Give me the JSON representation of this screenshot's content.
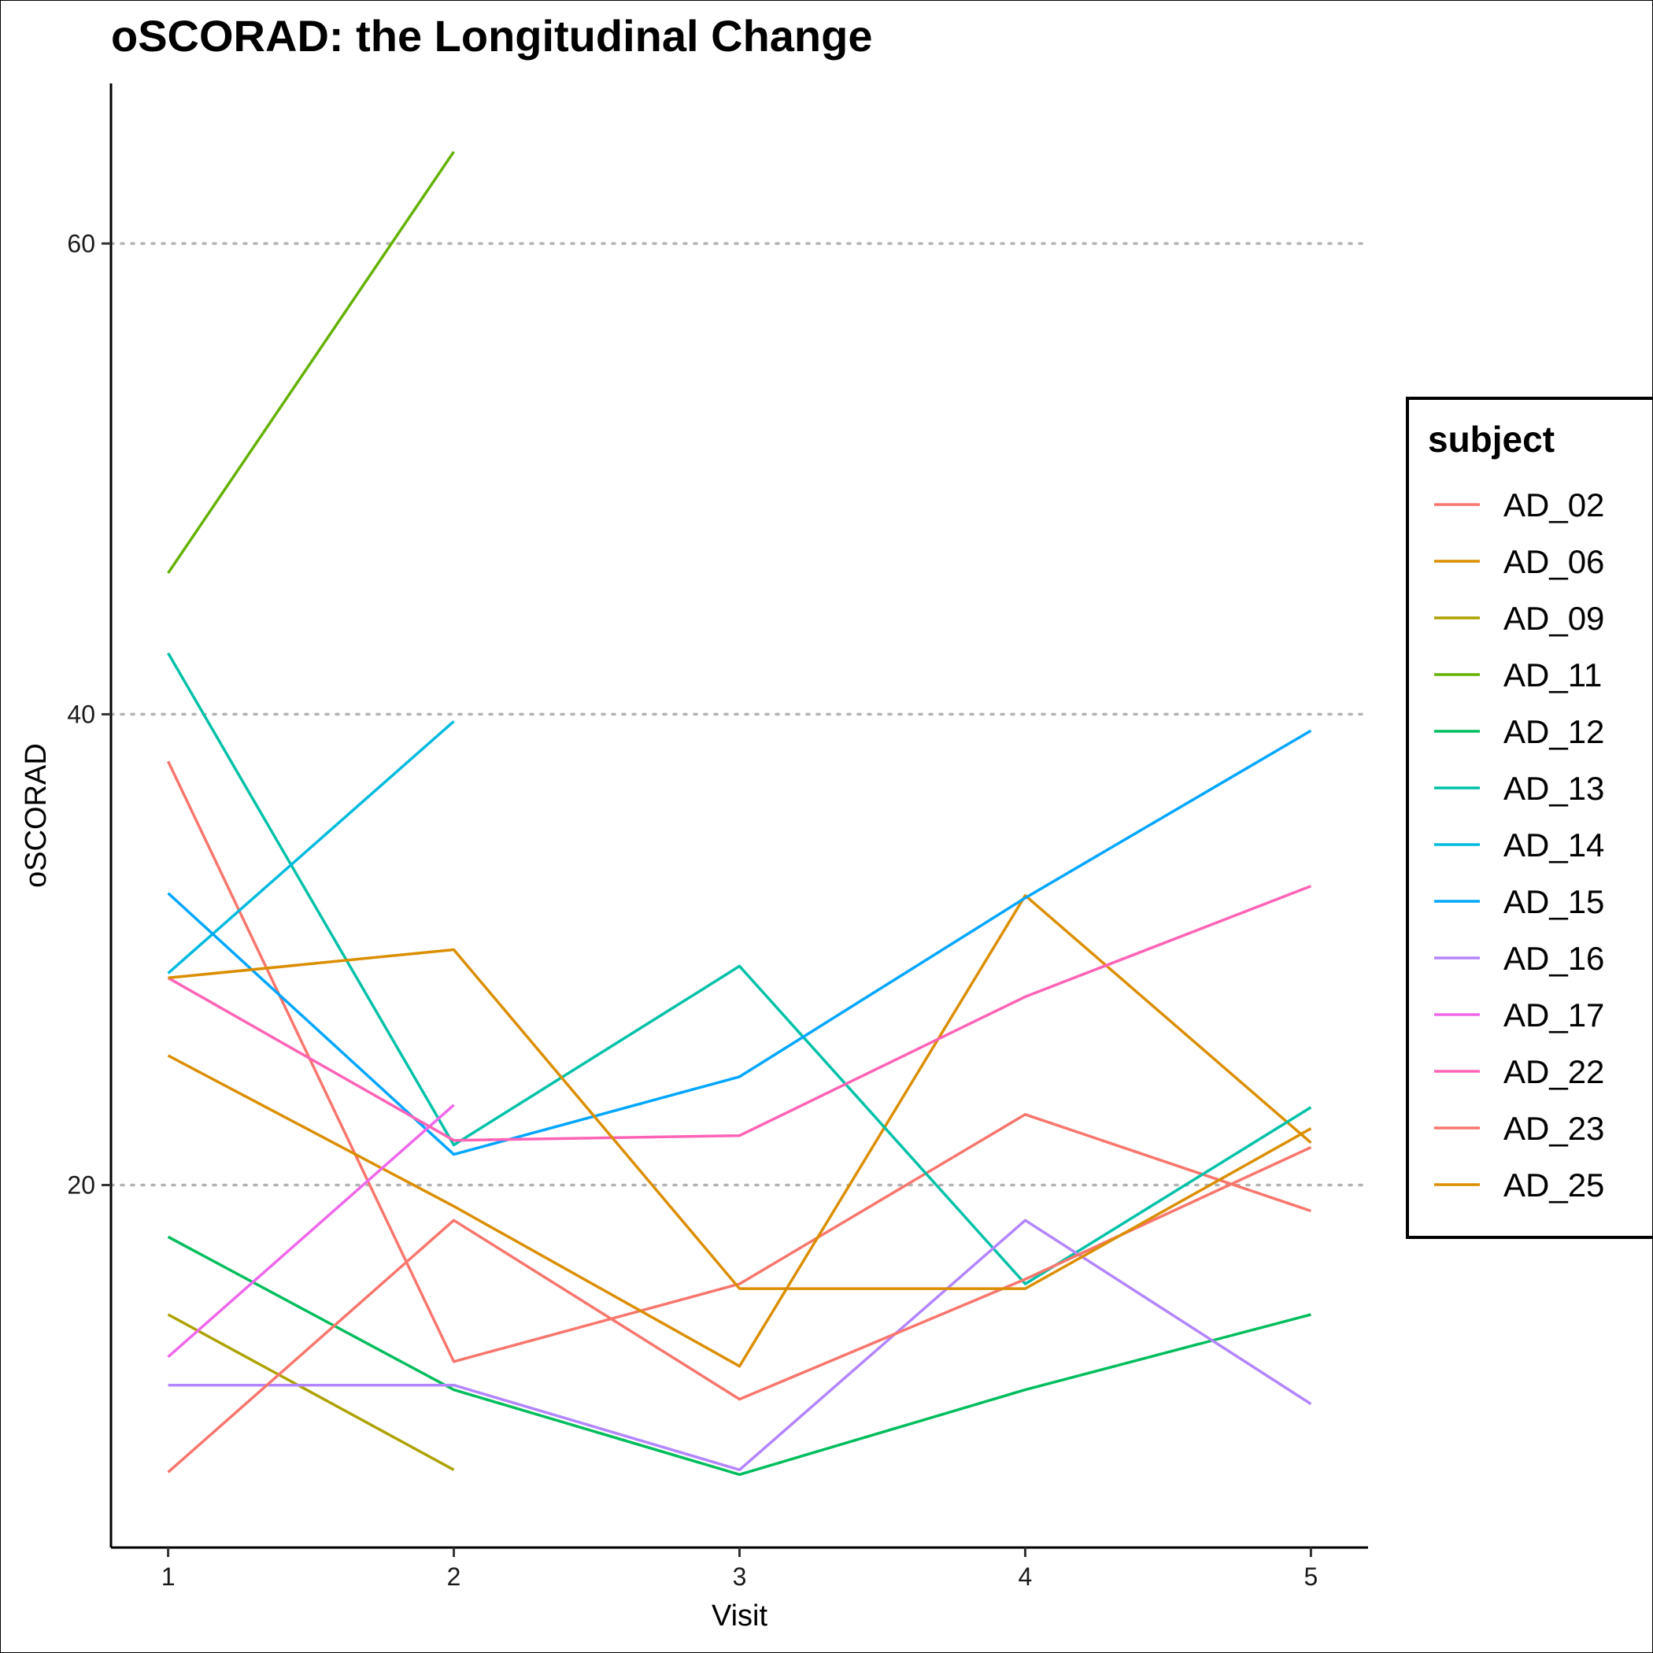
{
  "chart_data": {
    "type": "line",
    "title": "oSCORAD: the Longitudinal Change",
    "xlabel": "Visit",
    "ylabel": "oSCORAD",
    "x": [
      1,
      2,
      3,
      4,
      5
    ],
    "xlim": [
      0.8,
      5.2
    ],
    "ylim": [
      4.6,
      66.8
    ],
    "x_ticks": [
      "1",
      "2",
      "3",
      "4",
      "5"
    ],
    "y_ticks": [
      20,
      40,
      60
    ],
    "grid": {
      "horizontal_major": true,
      "style": "dotted",
      "vertical": false
    },
    "legend": {
      "title": "subject",
      "position": "right"
    },
    "series": [
      {
        "name": "AD_02",
        "color": "#F8766D",
        "points": [
          [
            1,
            38.0
          ],
          [
            2,
            12.5
          ],
          [
            3,
            15.8
          ],
          [
            4,
            23.0
          ],
          [
            5,
            18.9
          ]
        ]
      },
      {
        "name": "AD_06",
        "color": "#DB8E00",
        "points": [
          [
            1,
            25.5
          ],
          [
            2,
            19.1
          ],
          [
            3,
            12.3
          ],
          [
            4,
            32.3
          ],
          [
            5,
            21.8
          ]
        ]
      },
      {
        "name": "AD_09",
        "color": "#AEA200",
        "points": [
          [
            1,
            14.5
          ],
          [
            2,
            7.9
          ]
        ]
      },
      {
        "name": "AD_11",
        "color": "#64B200",
        "points": [
          [
            1,
            46.0
          ],
          [
            2,
            63.9
          ]
        ]
      },
      {
        "name": "AD_12",
        "color": "#00BD5C",
        "points": [
          [
            1,
            17.8
          ],
          [
            2,
            11.3
          ],
          [
            3,
            7.7
          ],
          [
            4,
            11.3
          ],
          [
            5,
            14.5
          ]
        ]
      },
      {
        "name": "AD_13",
        "color": "#00C1A7",
        "points": [
          [
            1,
            42.6
          ],
          [
            2,
            21.7
          ],
          [
            3,
            29.3
          ],
          [
            4,
            15.8
          ],
          [
            5,
            23.3
          ]
        ]
      },
      {
        "name": "AD_14",
        "color": "#00BADE",
        "points": [
          [
            1,
            29.0
          ],
          [
            2,
            39.7
          ]
        ]
      },
      {
        "name": "AD_15",
        "color": "#00A6FF",
        "points": [
          [
            1,
            32.4
          ],
          [
            2,
            21.3
          ],
          [
            3,
            24.6
          ],
          [
            4,
            32.2
          ],
          [
            5,
            39.3
          ]
        ]
      },
      {
        "name": "AD_16",
        "color": "#B385FF",
        "points": [
          [
            1,
            11.5
          ],
          [
            2,
            11.5
          ],
          [
            3,
            7.9
          ],
          [
            4,
            18.5
          ],
          [
            5,
            10.7
          ]
        ]
      },
      {
        "name": "AD_17",
        "color": "#EF67EB",
        "points": [
          [
            1,
            12.7
          ],
          [
            2,
            23.4
          ]
        ]
      },
      {
        "name": "AD_22",
        "color": "#FF63B6",
        "points": [
          [
            1,
            28.8
          ],
          [
            2,
            21.9
          ],
          [
            3,
            22.1
          ],
          [
            4,
            28.0
          ],
          [
            5,
            32.7
          ]
        ]
      },
      {
        "name": "AD_23",
        "color": "#F8766D",
        "points": [
          [
            1,
            7.8
          ],
          [
            2,
            18.5
          ],
          [
            3,
            10.9
          ],
          [
            4,
            16.0
          ],
          [
            5,
            21.6
          ]
        ]
      },
      {
        "name": "AD_25",
        "color": "#DB8E00",
        "points": [
          [
            1,
            28.8
          ],
          [
            2,
            30.0
          ],
          [
            3,
            15.6
          ],
          [
            4,
            15.6
          ],
          [
            5,
            22.4
          ]
        ]
      }
    ]
  }
}
